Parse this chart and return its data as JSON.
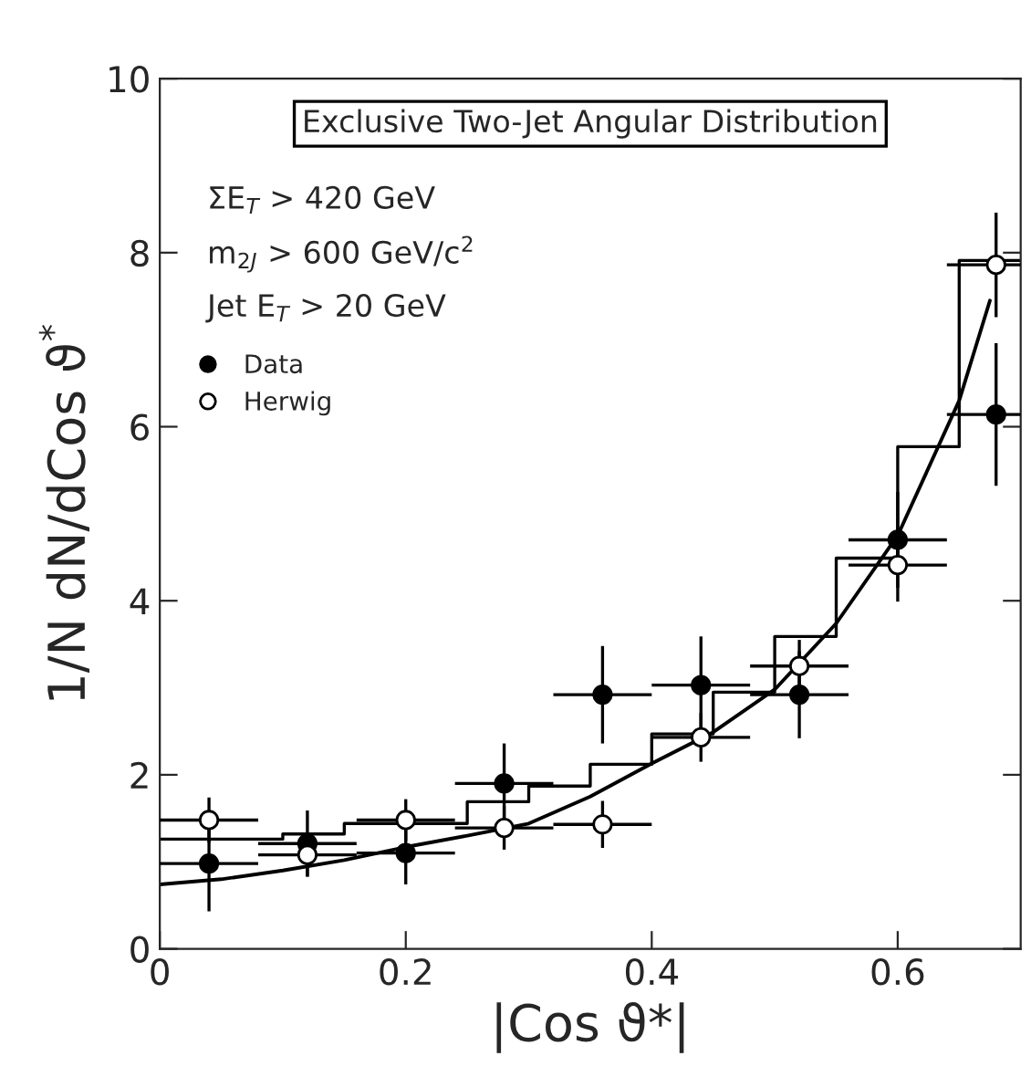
{
  "chart_data": {
    "type": "scatter",
    "title": "Exclusive Two-Jet Angular Distribution",
    "xlabel": "|Cos ϑ*|",
    "ylabel": "1/N dN/dCos ϑ$^{*}$",
    "annotations": [
      "ΣE$_{T}$ > 420 GeV",
      "m$_{2J}$ > 600 GeV/c$^{2}$",
      "Jet E$_{T}$ > 20 GeV"
    ],
    "x": [
      0.04,
      0.12,
      0.2,
      0.28,
      0.36,
      0.44,
      0.52,
      0.6,
      0.68
    ],
    "series": [
      {
        "name": "Data",
        "color": "#000000",
        "marker": "circle",
        "values": [
          0.98,
          1.21,
          1.1,
          1.9,
          2.92,
          3.03,
          2.92,
          4.7,
          6.14
        ],
        "errors": [
          0.55,
          0.38,
          0.36,
          0.46,
          0.56,
          0.56,
          0.5,
          0.55,
          0.82
        ],
        "xerrors": [
          0.04,
          0.04,
          0.04,
          0.04,
          0.04,
          0.04,
          0.04,
          0.04,
          [
            0.64,
            0.7
          ]
        ]
      },
      {
        "name": "Herwig",
        "color": "#000000",
        "marker": "circle",
        "values": [
          1.48,
          1.08,
          1.48,
          1.39,
          1.43,
          2.43,
          3.25,
          4.41,
          7.86
        ],
        "errors": [
          0.26,
          0.25,
          0.24,
          0.25,
          0.27,
          0.28,
          0.3,
          0.42,
          0.6
        ],
        "xerrors": [
          0.04,
          0.04,
          0.04,
          0.04,
          0.04,
          0.04,
          0.04,
          0.04,
          [
            0.64,
            0.7
          ]
        ]
      },
      {
        "type": "step",
        "color": "#000000",
        "x": [
          0,
          0.05,
          0.1,
          0.15,
          0.2,
          0.25,
          0.3,
          0.35,
          0.4,
          0.45,
          0.5,
          0.55,
          0.6,
          0.65,
          0.7
        ],
        "values": [
          1.26,
          1.26,
          1.32,
          1.44,
          1.44,
          1.69,
          1.87,
          2.12,
          2.47,
          2.95,
          3.59,
          4.49,
          5.77,
          7.91,
          7.91
        ]
      },
      {
        "type": "line",
        "color": "#000000",
        "x": [
          0,
          0.05,
          0.1,
          0.15,
          0.2,
          0.25,
          0.3,
          0.35,
          0.4,
          0.45,
          0.5,
          0.55,
          0.6,
          0.65,
          0.675
        ],
        "values": [
          0.74,
          0.8,
          0.9,
          1.02,
          1.17,
          1.3,
          1.44,
          1.75,
          2.13,
          2.49,
          2.98,
          3.74,
          4.75,
          6.3,
          7.45
        ]
      }
    ],
    "legend": "top left",
    "grid": false,
    "xlim": [
      0,
      0.7
    ],
    "xticks": [
      0,
      0.2,
      0.4,
      0.6
    ],
    "ylim": [
      0,
      10
    ],
    "yticks": [
      0,
      2,
      4,
      6,
      8,
      10
    ]
  }
}
